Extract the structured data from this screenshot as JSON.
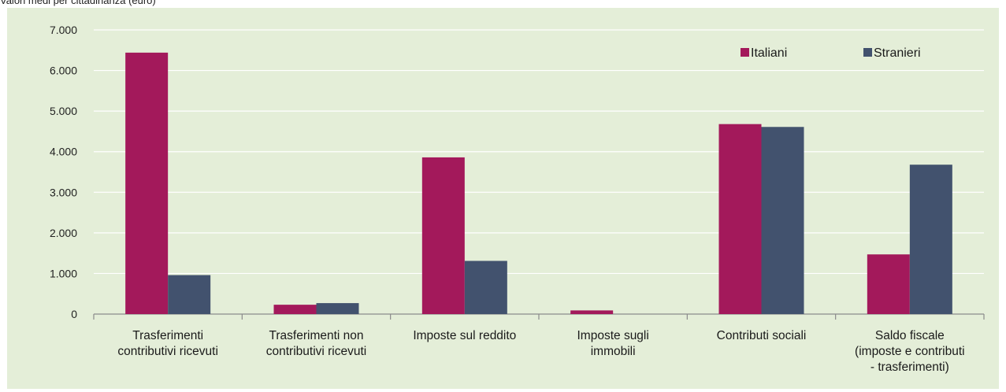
{
  "subtitle": "Valori medi per cittadinanza (euro)",
  "chart_data": {
    "type": "bar",
    "title": "",
    "subtitle": "Valori medi per cittadinanza (euro)",
    "categories": [
      [
        "Trasferimenti",
        "contributivi ricevuti"
      ],
      [
        "Trasferimenti non",
        "contributivi ricevuti"
      ],
      [
        "Imposte sul reddito"
      ],
      [
        "Imposte sugli",
        "immobili"
      ],
      [
        "Contributi sociali"
      ],
      [
        "Saldo fiscale",
        "(imposte e contributi",
        "- trasferimenti)"
      ]
    ],
    "series": [
      {
        "name": "Italiani",
        "color": "#a3195b",
        "values": [
          6440,
          230,
          3860,
          90,
          4680,
          1470
        ]
      },
      {
        "name": "Stranieri",
        "color": "#42526e",
        "values": [
          960,
          270,
          1310,
          0,
          4610,
          3680
        ]
      }
    ],
    "yticks": [
      "0",
      "1.000",
      "2.000",
      "3.000",
      "4.000",
      "5.000",
      "6.000",
      "7.000"
    ],
    "ylim": [
      0,
      7000
    ],
    "grid": true,
    "legend_position": "top-right",
    "background": "#e4eed8"
  }
}
